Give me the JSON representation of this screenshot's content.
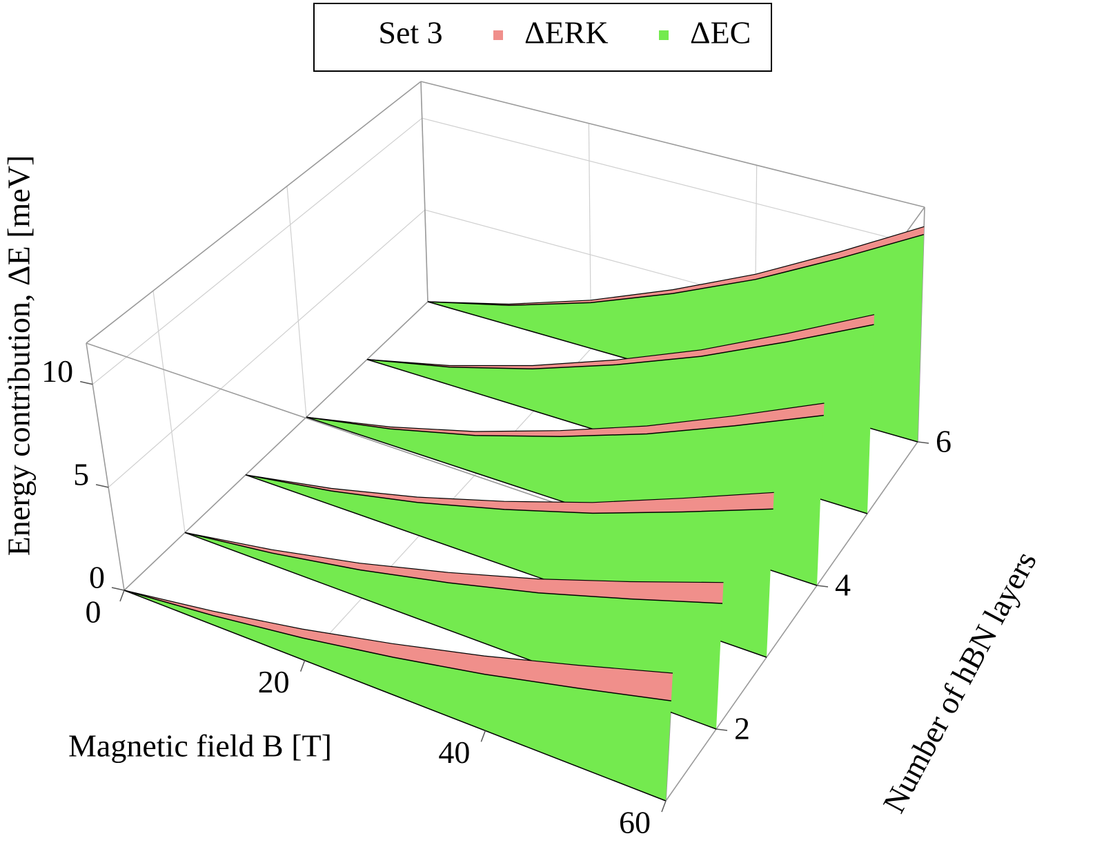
{
  "chart_data": {
    "type": "ribbon3d",
    "legend_title": "Set 3",
    "xlabel": "Magnetic field B [T]",
    "ylabel": "Number of hBN layers",
    "zlabel": "Energy contribution, ΔE [meV]",
    "x": [
      0,
      10,
      20,
      30,
      40,
      50,
      60
    ],
    "layers": [
      1,
      2,
      3,
      4,
      5,
      6
    ],
    "xlim": [
      0,
      60
    ],
    "xticks": [
      0,
      20,
      40,
      60
    ],
    "ylim": [
      1,
      6
    ],
    "yticks": [
      2,
      4,
      6
    ],
    "zlim": [
      0,
      12
    ],
    "zticks": [
      0,
      5,
      10
    ],
    "stacked": true,
    "grid": true,
    "series": [
      {
        "name": "ΔERK",
        "color": "#f08f8b",
        "values": [
          [
            0,
            0.22,
            0.43,
            0.65,
            0.87,
            1.08,
            1.3
          ],
          [
            0,
            0.17,
            0.33,
            0.5,
            0.67,
            0.83,
            1.0
          ],
          [
            0,
            0.13,
            0.27,
            0.4,
            0.53,
            0.67,
            0.8
          ],
          [
            0,
            0.1,
            0.2,
            0.3,
            0.4,
            0.5,
            0.6
          ],
          [
            0,
            0.08,
            0.17,
            0.25,
            0.33,
            0.42,
            0.5
          ],
          [
            0,
            0.07,
            0.13,
            0.2,
            0.27,
            0.33,
            0.4
          ]
        ]
      },
      {
        "name": "ΔEC",
        "color": "#74ea4f",
        "values": [
          [
            0,
            0.47,
            1.08,
            1.83,
            2.68,
            3.67,
            4.7
          ],
          [
            0,
            0.6,
            1.38,
            2.34,
            3.42,
            4.68,
            6.0
          ],
          [
            0,
            0.72,
            1.66,
            2.81,
            4.1,
            5.62,
            7.2
          ],
          [
            0,
            0.84,
            1.93,
            3.28,
            4.79,
            6.55,
            8.4
          ],
          [
            0,
            0.95,
            2.19,
            3.71,
            5.42,
            7.41,
            9.5
          ],
          [
            0,
            1.06,
            2.44,
            4.13,
            6.04,
            8.27,
            10.6
          ]
        ]
      }
    ]
  }
}
